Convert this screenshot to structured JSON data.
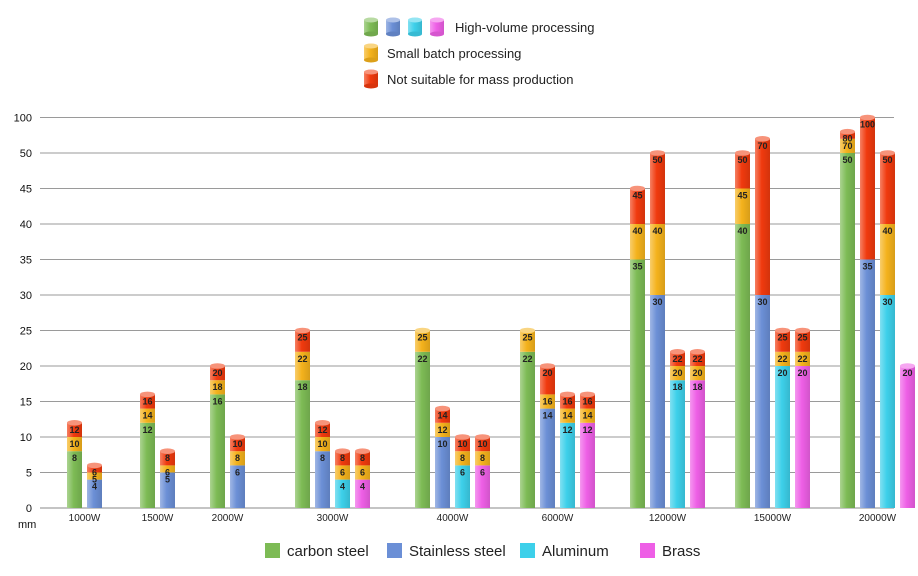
{
  "chart_data": {
    "type": "bar",
    "title": "",
    "ylabel": "mm",
    "xlabel": "",
    "y_tick_labels": [
      "0",
      "5",
      "10",
      "15",
      "20",
      "25",
      "30",
      "35",
      "40",
      "45",
      "50",
      "100"
    ],
    "categories": [
      "1000W",
      "1500W",
      "2000W",
      "3000W",
      "4000W",
      "6000W",
      "12000W",
      "15000W",
      "20000W"
    ],
    "materials": [
      {
        "name": "carbon steel",
        "color": "#7dbb55"
      },
      {
        "name": "Stainless steel",
        "color": "#6b8fd6"
      },
      {
        "name": "Aluminum",
        "color": "#3dd0ea"
      },
      {
        "name": "Brass",
        "color": "#ee5fe6"
      }
    ],
    "processing_legend": [
      {
        "label": "High-volume processing",
        "colors": [
          "#7dbb55",
          "#6b8fd6",
          "#3dd0ea",
          "#ee5fe6"
        ]
      },
      {
        "label": "Small batch processing",
        "colors": [
          "#f4b21c"
        ]
      },
      {
        "label": "Not suitable for mass production",
        "colors": [
          "#f03a0e"
        ]
      }
    ],
    "segment_colors": {
      "small_batch": "#f4b21c",
      "not_suitable": "#f03a0e"
    },
    "bars": [
      {
        "category": "1000W",
        "material": "carbon steel",
        "values": [
          8,
          10,
          12
        ]
      },
      {
        "category": "1000W",
        "material": "Stainless steel",
        "values": [
          4,
          5,
          6
        ]
      },
      {
        "category": "1500W",
        "material": "carbon steel",
        "values": [
          12,
          14,
          16
        ]
      },
      {
        "category": "1500W",
        "material": "Stainless steel",
        "values": [
          5,
          6,
          8
        ]
      },
      {
        "category": "2000W",
        "material": "carbon steel",
        "values": [
          16,
          18,
          20
        ]
      },
      {
        "category": "2000W",
        "material": "Stainless steel",
        "values": [
          6,
          8,
          10
        ]
      },
      {
        "category": "3000W",
        "material": "carbon steel",
        "values": [
          18,
          22,
          25
        ]
      },
      {
        "category": "3000W",
        "material": "Stainless steel",
        "values": [
          8,
          10,
          12
        ]
      },
      {
        "category": "3000W",
        "material": "Aluminum",
        "values": [
          4,
          6,
          8
        ]
      },
      {
        "category": "3000W",
        "material": "Brass",
        "values": [
          4,
          6,
          8
        ]
      },
      {
        "category": "4000W",
        "material": "carbon steel",
        "values": [
          22,
          25,
          null
        ]
      },
      {
        "category": "4000W",
        "material": "Stainless steel",
        "values": [
          10,
          12,
          14
        ]
      },
      {
        "category": "4000W",
        "material": "Aluminum",
        "values": [
          6,
          8,
          10
        ]
      },
      {
        "category": "4000W",
        "material": "Brass",
        "values": [
          6,
          8,
          10
        ]
      },
      {
        "category": "6000W",
        "material": "carbon steel",
        "values": [
          22,
          25,
          null
        ]
      },
      {
        "category": "6000W",
        "material": "Stainless steel",
        "values": [
          14,
          16,
          20
        ]
      },
      {
        "category": "6000W",
        "material": "Aluminum",
        "values": [
          12,
          14,
          16
        ]
      },
      {
        "category": "6000W",
        "material": "Brass",
        "values": [
          12,
          14,
          16
        ]
      },
      {
        "category": "12000W",
        "material": "carbon steel",
        "values": [
          35,
          40,
          45
        ]
      },
      {
        "category": "12000W",
        "material": "Stainless steel",
        "values": [
          30,
          40,
          50
        ]
      },
      {
        "category": "12000W",
        "material": "Aluminum",
        "values": [
          18,
          20,
          22
        ]
      },
      {
        "category": "12000W",
        "material": "Brass",
        "values": [
          18,
          20,
          22
        ]
      },
      {
        "category": "15000W",
        "material": "carbon steel",
        "values": [
          40,
          45,
          50
        ]
      },
      {
        "category": "15000W",
        "material": "Stainless steel",
        "values": [
          30,
          null,
          70
        ]
      },
      {
        "category": "15000W",
        "material": "Aluminum",
        "values": [
          20,
          22,
          25
        ]
      },
      {
        "category": "15000W",
        "material": "Brass",
        "values": [
          20,
          22,
          25
        ]
      },
      {
        "category": "20000W",
        "material": "carbon steel",
        "values": [
          50,
          70,
          80
        ]
      },
      {
        "category": "20000W",
        "material": "Stainless steel",
        "values": [
          35,
          null,
          100
        ]
      },
      {
        "category": "20000W",
        "material": "Aluminum",
        "values": [
          30,
          40,
          50
        ]
      },
      {
        "category": "20000W",
        "material": "Brass",
        "values": [
          20,
          null,
          null
        ]
      }
    ]
  }
}
